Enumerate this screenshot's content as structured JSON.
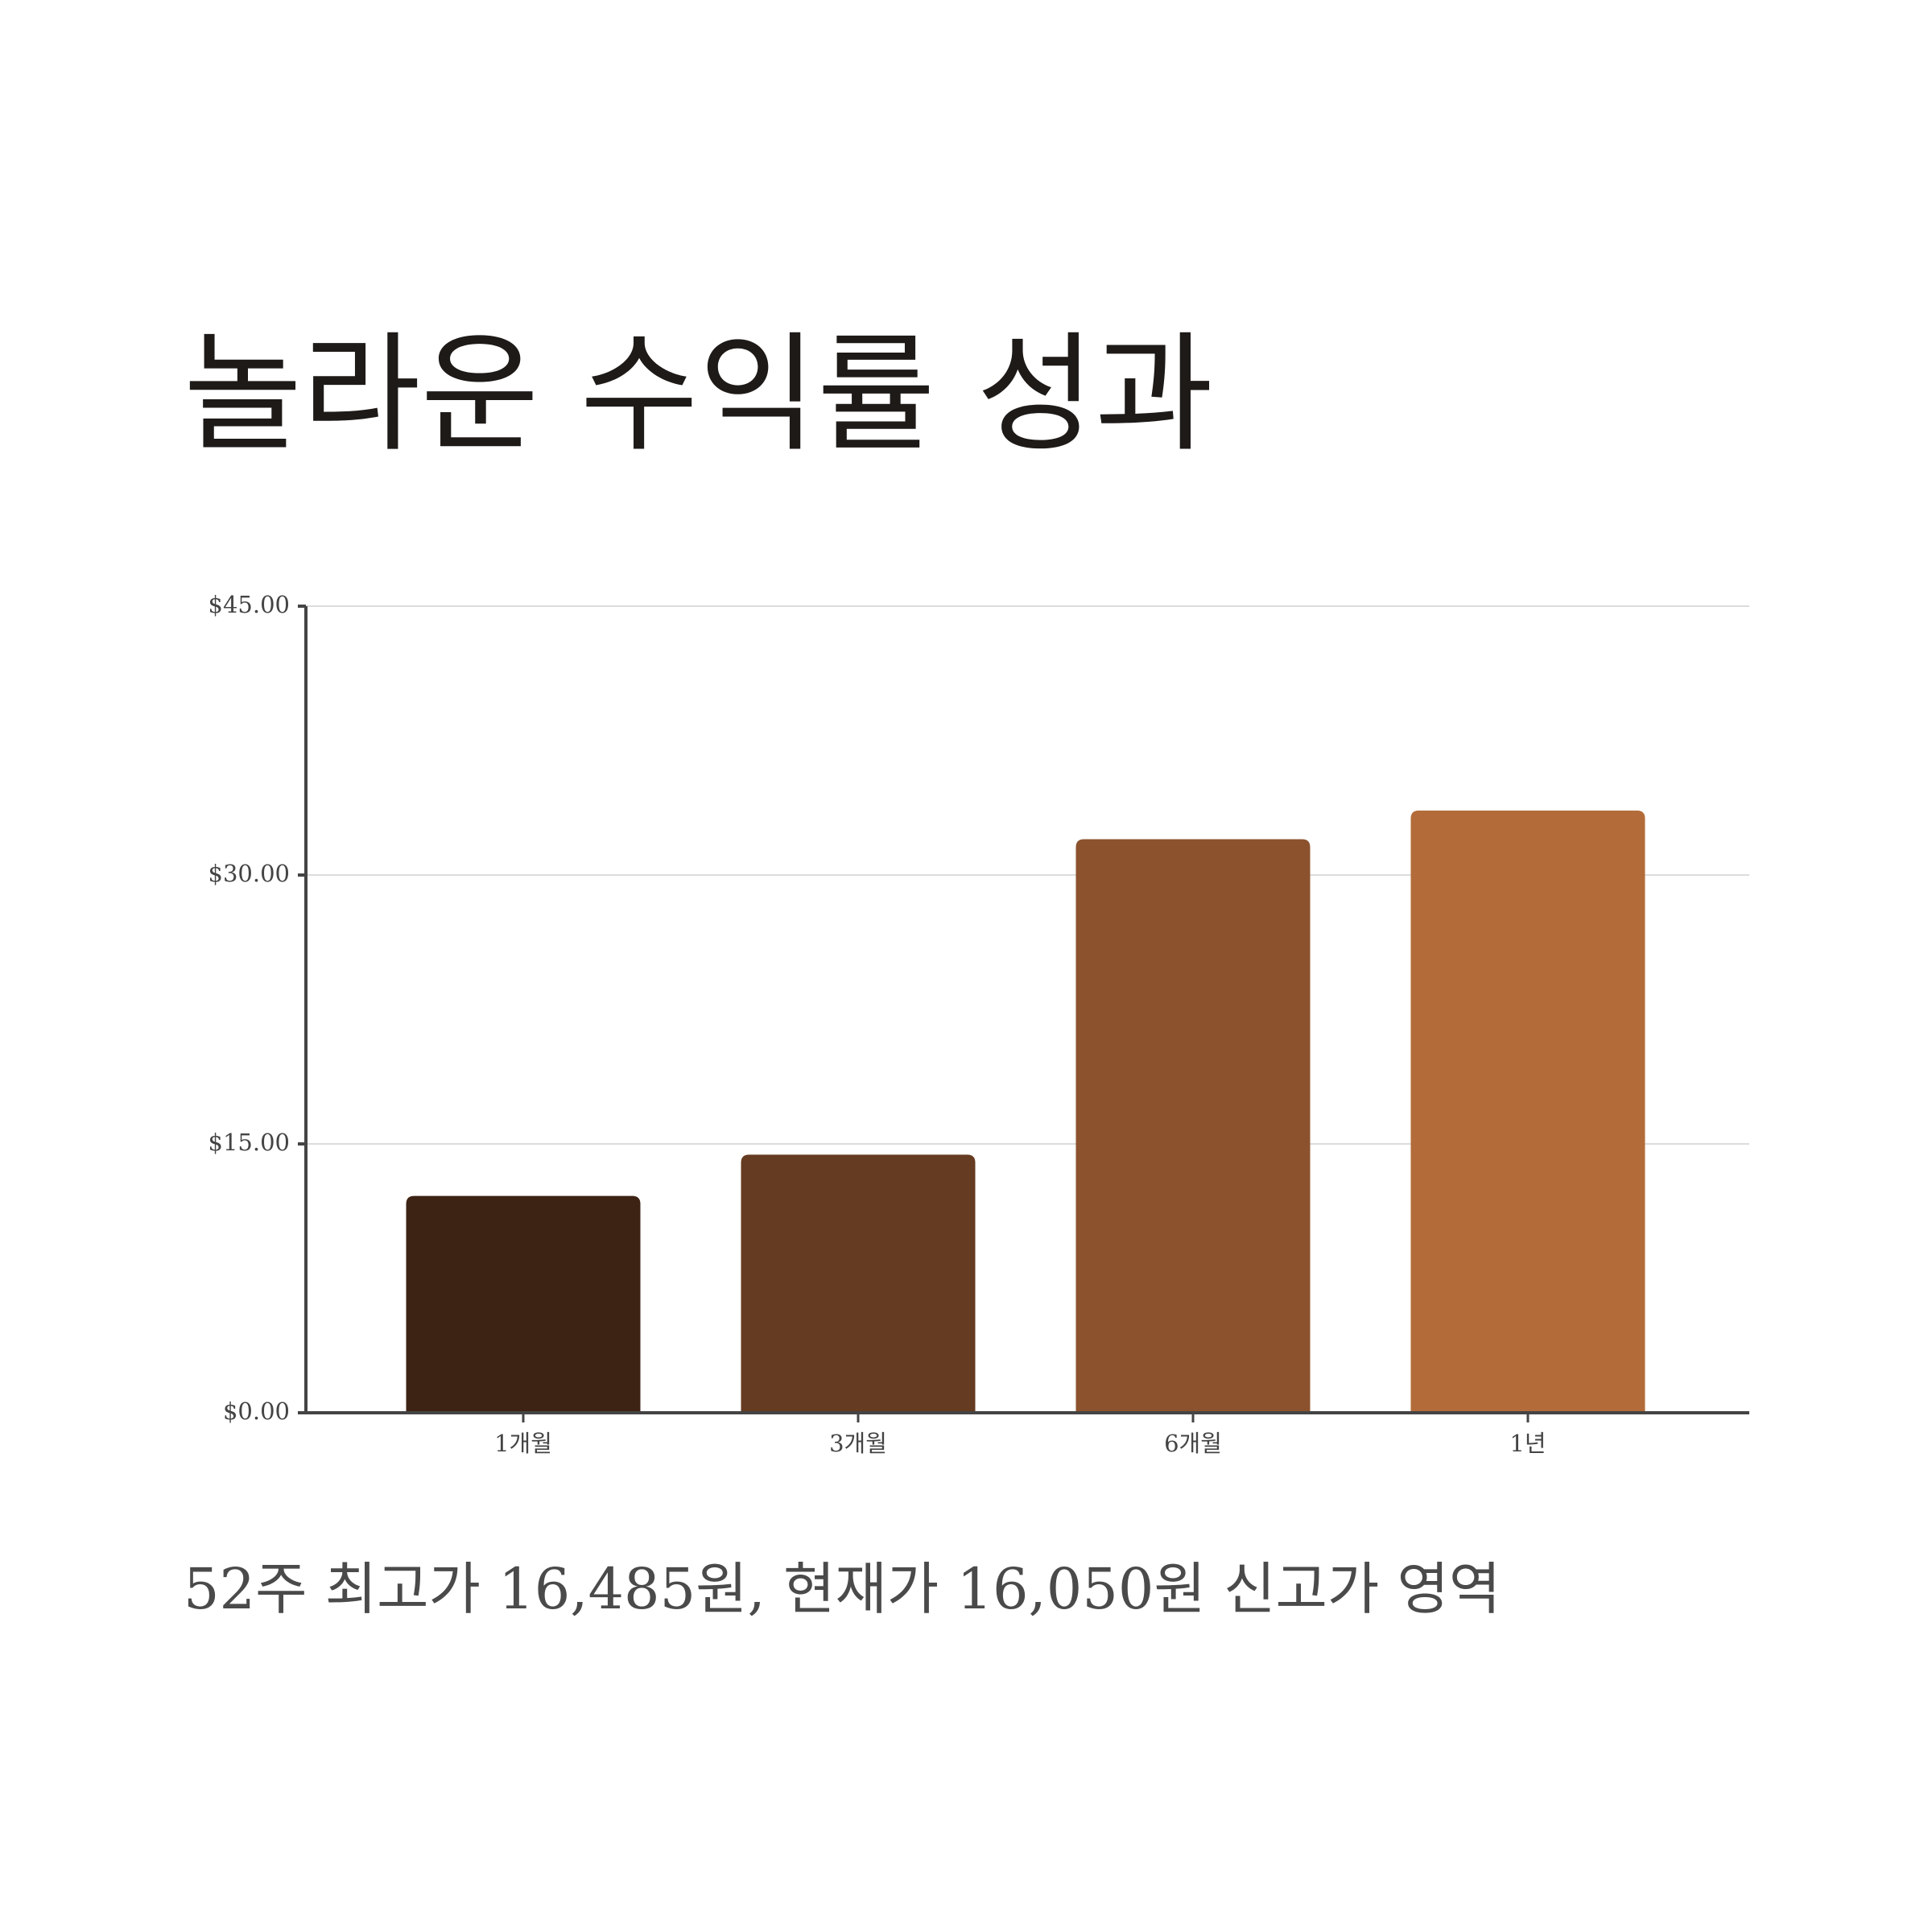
{
  "chart_data": {
    "type": "bar",
    "title": "놀라운 수익률 성과",
    "subtitle": "52주 최고가 16,485원, 현재가 16,050원 신고가 영역",
    "categories": [
      "1개월",
      "3개월",
      "6개월",
      "1년"
    ],
    "values": [
      12.1,
      14.4,
      32.0,
      33.6
    ],
    "colors": [
      "#3d2314",
      "#653b21",
      "#8b522d",
      "#b36c39"
    ],
    "ylim": [
      0,
      45
    ],
    "yticks": [
      {
        "value": 0,
        "label": "$0.00"
      },
      {
        "value": 15,
        "label": "$15.00"
      },
      {
        "value": 30,
        "label": "$30.00"
      },
      {
        "value": 45,
        "label": "$45.00"
      }
    ],
    "grid": true
  }
}
